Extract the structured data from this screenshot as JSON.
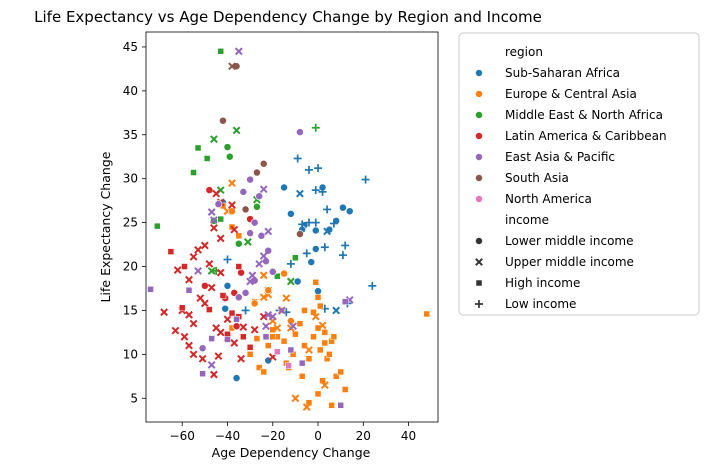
{
  "chart_data": {
    "type": "scatter",
    "title": "Life Expectancy vs Age Dependency Change by Region and Income",
    "xlabel": "Age Dependency Change",
    "ylabel": "Life Expectancy Change",
    "xlim": [
      -76,
      53
    ],
    "ylim": [
      2.3,
      46.7
    ],
    "xticks": [
      -60,
      -40,
      -20,
      0,
      20,
      40
    ],
    "yticks": [
      5,
      10,
      15,
      20,
      25,
      30,
      35,
      40,
      45
    ],
    "grid": false,
    "legend_position": "outside-right",
    "legend": {
      "hue_title": "region",
      "style_title": "income",
      "regions": [
        {
          "name": "Sub-Saharan Africa",
          "color": "#1f77b4"
        },
        {
          "name": "Europe & Central Asia",
          "color": "#ff7f0e"
        },
        {
          "name": "Middle East & North Africa",
          "color": "#2ca02c"
        },
        {
          "name": "Latin America & Caribbean",
          "color": "#d62728"
        },
        {
          "name": "East Asia & Pacific",
          "color": "#9467bd"
        },
        {
          "name": "South Asia",
          "color": "#8c564b"
        },
        {
          "name": "North America",
          "color": "#e377c2"
        }
      ],
      "incomes": [
        {
          "name": "Lower middle income",
          "marker": "circle"
        },
        {
          "name": "Upper middle income",
          "marker": "x"
        },
        {
          "name": "High income",
          "marker": "square"
        },
        {
          "name": "Low income",
          "marker": "plus"
        }
      ]
    },
    "series": [
      {
        "region": "Sub-Saharan Africa",
        "income": "Lower middle income",
        "points": [
          [
            -42,
            27.3
          ],
          [
            -40,
            17.8
          ],
          [
            -41,
            15.2
          ],
          [
            -36,
            7.3
          ],
          [
            -22,
            9.3
          ],
          [
            -15,
            29.0
          ],
          [
            -12,
            26.0
          ],
          [
            -9,
            18.3
          ],
          [
            -6,
            24.7
          ],
          [
            -7,
            24.2
          ],
          [
            -1,
            24.1
          ],
          [
            2,
            29.0
          ],
          [
            5,
            24.2
          ],
          [
            8,
            25.2
          ],
          [
            11,
            26.7
          ],
          [
            14,
            26.3
          ],
          [
            -1,
            22.0
          ],
          [
            -10,
            21.0
          ],
          [
            -3,
            20.5
          ],
          [
            0,
            17.2
          ]
        ]
      },
      {
        "region": "Sub-Saharan Africa",
        "income": "Low income",
        "points": [
          [
            -9,
            32.3
          ],
          [
            -4,
            31.0
          ],
          [
            0,
            31.2
          ],
          [
            -1,
            28.7
          ],
          [
            2,
            28.5
          ],
          [
            -4,
            25.0
          ],
          [
            4,
            26.5
          ],
          [
            -7,
            24.8
          ],
          [
            -1,
            25.0
          ],
          [
            3,
            22.2
          ],
          [
            7,
            24.9
          ],
          [
            12,
            22.4
          ],
          [
            21,
            29.9
          ],
          [
            24,
            17.8
          ],
          [
            -5,
            21.5
          ],
          [
            -12,
            20.3
          ],
          [
            -17,
            15.0
          ],
          [
            -14,
            14.8
          ],
          [
            -32,
            15.0
          ],
          [
            -40,
            20.8
          ],
          [
            11,
            21.3
          ],
          [
            13,
            15.8
          ],
          [
            3,
            15.2
          ]
        ]
      },
      {
        "region": "Sub-Saharan Africa",
        "income": "Upper middle income",
        "points": [
          [
            -8,
            28.3
          ],
          [
            4,
            24.0
          ],
          [
            8,
            15.0
          ]
        ]
      },
      {
        "region": "Europe & Central Asia",
        "income": "High income",
        "points": [
          [
            -38,
            24.5
          ],
          [
            -42,
            26.9
          ],
          [
            -35,
            23.5
          ],
          [
            -28,
            16.0
          ],
          [
            -27,
            11.8
          ],
          [
            -38,
            13.0
          ],
          [
            -26,
            8.5
          ],
          [
            -20,
            12.8
          ],
          [
            -18,
            12.0
          ],
          [
            -14,
            9.0
          ],
          [
            -11,
            10.0
          ],
          [
            -13,
            8.5
          ],
          [
            -8,
            13.5
          ],
          [
            -6,
            11.0
          ],
          [
            -4,
            9.5
          ],
          [
            -2,
            12.0
          ],
          [
            0,
            13.0
          ],
          [
            1,
            10.5
          ],
          [
            3,
            12.5
          ],
          [
            4,
            9.5
          ],
          [
            6,
            11.5
          ],
          [
            8,
            7.5
          ],
          [
            10,
            8.0
          ],
          [
            12,
            6.0
          ],
          [
            2,
            7.0
          ],
          [
            0,
            5.5
          ],
          [
            -4,
            4.5
          ],
          [
            -6,
            15.0
          ],
          [
            -2,
            14.8
          ],
          [
            0,
            16.5
          ],
          [
            -1,
            18.2
          ],
          [
            1,
            15.5
          ],
          [
            3,
            11.3
          ],
          [
            5,
            10.0
          ],
          [
            7,
            12.0
          ],
          [
            -7,
            7.5
          ],
          [
            -15,
            11.5
          ],
          [
            -10,
            12.3
          ],
          [
            -20,
            12.0
          ],
          [
            6,
            4.2
          ],
          [
            48,
            14.6
          ],
          [
            -30,
            10.0
          ],
          [
            -24,
            8.0
          ],
          [
            -22,
            11.0
          ],
          [
            -16,
            15.0
          ]
        ]
      },
      {
        "region": "Europe & Central Asia",
        "income": "Upper middle income",
        "points": [
          [
            -38,
            29.5
          ],
          [
            -40,
            26.3
          ],
          [
            -22,
            16.8
          ],
          [
            -24,
            16.5
          ],
          [
            -20,
            13.8
          ],
          [
            -18,
            13.0
          ],
          [
            -14,
            16.4
          ],
          [
            -12,
            13.0
          ],
          [
            -10,
            5.0
          ],
          [
            -5,
            4.0
          ],
          [
            -4,
            10.5
          ],
          [
            2,
            13.3
          ],
          [
            -1,
            14.3
          ],
          [
            -24,
            19.0
          ],
          [
            -22,
            17.3
          ],
          [
            3,
            6.5
          ]
        ]
      },
      {
        "region": "Europe & Central Asia",
        "income": "Lower middle income",
        "points": [
          [
            -38,
            26.3
          ],
          [
            -22,
            17.3
          ],
          [
            -28,
            15.8
          ],
          [
            -15,
            19.2
          ],
          [
            -12,
            13.8
          ]
        ]
      },
      {
        "region": "Middle East & North Africa",
        "income": "High income",
        "points": [
          [
            -43,
            44.5
          ],
          [
            -71,
            24.6
          ],
          [
            -53,
            33.5
          ],
          [
            -49,
            32.3
          ],
          [
            -55,
            30.7
          ],
          [
            -43,
            25.4
          ],
          [
            -18,
            18.9
          ],
          [
            -10,
            21.0
          ]
        ]
      },
      {
        "region": "Middle East & North Africa",
        "income": "Upper middle income",
        "points": [
          [
            -46,
            34.5
          ],
          [
            -36,
            35.5
          ],
          [
            -43,
            28.7
          ],
          [
            -47,
            19.5
          ],
          [
            -31,
            22.8
          ],
          [
            -12,
            18.3
          ],
          [
            -27,
            27.6
          ]
        ]
      },
      {
        "region": "Middle East & North Africa",
        "income": "Lower middle income",
        "points": [
          [
            -40,
            33.6
          ],
          [
            -39,
            32.5
          ],
          [
            -46,
            25.2
          ],
          [
            -27,
            26.8
          ],
          [
            -35,
            22.6
          ]
        ]
      },
      {
        "region": "Middle East & North Africa",
        "income": "Low income",
        "points": [
          [
            -1,
            35.8
          ],
          [
            -45,
            19.5
          ]
        ]
      },
      {
        "region": "Latin America & Caribbean",
        "income": "Lower middle income",
        "points": [
          [
            -48,
            28.7
          ],
          [
            -30,
            25.4
          ],
          [
            -34,
            19.3
          ],
          [
            -37,
            17.0
          ],
          [
            -50,
            17.8
          ],
          [
            -41,
            16.4
          ],
          [
            -36,
            13.2
          ],
          [
            -40,
            12.0
          ]
        ]
      },
      {
        "region": "Latin America & Caribbean",
        "income": "Upper middle income",
        "points": [
          [
            -45,
            28.3
          ],
          [
            -43,
            27.3
          ],
          [
            -38,
            27.0
          ],
          [
            -46,
            24.4
          ],
          [
            -37,
            24.2
          ],
          [
            -43,
            23.2
          ],
          [
            -50,
            22.4
          ],
          [
            -53,
            21.9
          ],
          [
            -55,
            21.1
          ],
          [
            -48,
            20.3
          ],
          [
            -43,
            19.3
          ],
          [
            -62,
            19.6
          ],
          [
            -57,
            18.5
          ],
          [
            -47,
            17.6
          ],
          [
            -52,
            16.4
          ],
          [
            -50,
            15.8
          ],
          [
            -60,
            15.0
          ],
          [
            -57,
            14.5
          ],
          [
            -55,
            13.5
          ],
          [
            -63,
            12.7
          ],
          [
            -59,
            12.0
          ],
          [
            -57,
            11.0
          ],
          [
            -55,
            10.0
          ],
          [
            -51,
            9.5
          ],
          [
            -46,
            7.7
          ],
          [
            -44,
            9.8
          ],
          [
            -43,
            12.5
          ],
          [
            -40,
            11.9
          ],
          [
            -37,
            11.3
          ],
          [
            -34,
            9.5
          ],
          [
            -33,
            13.1
          ],
          [
            -28,
            12.8
          ],
          [
            -24,
            14.3
          ],
          [
            -20,
            9.7
          ],
          [
            -40,
            14.0
          ],
          [
            -68,
            14.8
          ],
          [
            -45,
            13.0
          ]
        ]
      },
      {
        "region": "Latin America & Caribbean",
        "income": "High income",
        "points": [
          [
            -65,
            21.7
          ],
          [
            -59,
            20.0
          ],
          [
            -60,
            15.3
          ],
          [
            -48,
            15.1
          ],
          [
            -42,
            16.7
          ],
          [
            -40,
            12.3
          ],
          [
            -38,
            14.7
          ],
          [
            -35,
            14.3
          ],
          [
            -33,
            12.0
          ],
          [
            -30,
            10.8
          ],
          [
            -35,
            20.0
          ]
        ]
      },
      {
        "region": "East Asia & Pacific",
        "income": "Lower middle income",
        "points": [
          [
            -8,
            35.3
          ],
          [
            -30,
            29.9
          ],
          [
            -33,
            28.5
          ],
          [
            -26,
            28.0
          ],
          [
            -44,
            27.1
          ],
          [
            -28,
            25.0
          ],
          [
            -30,
            23.8
          ],
          [
            -25,
            23.5
          ],
          [
            -22,
            21.8
          ],
          [
            -23,
            20.6
          ],
          [
            -28,
            18.4
          ],
          [
            -32,
            17.0
          ],
          [
            -35,
            16.5
          ],
          [
            -51,
            10.7
          ],
          [
            -20,
            19.4
          ]
        ]
      },
      {
        "region": "East Asia & Pacific",
        "income": "Upper middle income",
        "points": [
          [
            -35,
            44.5
          ],
          [
            -24,
            28.8
          ],
          [
            -47,
            26.2
          ],
          [
            -46,
            25.3
          ],
          [
            -22,
            24.0
          ],
          [
            -24,
            21.2
          ],
          [
            -26,
            20.3
          ],
          [
            -29,
            19.0
          ],
          [
            -30,
            18.3
          ],
          [
            -47,
            8.8
          ],
          [
            -20,
            14.3
          ],
          [
            -22,
            14.5
          ],
          [
            -11,
            13.2
          ],
          [
            -16,
            15.0
          ],
          [
            -23,
            13.2
          ],
          [
            14,
            16.2
          ],
          [
            -53,
            19.5
          ]
        ]
      },
      {
        "region": "East Asia & Pacific",
        "income": "High income",
        "points": [
          [
            -74,
            17.4
          ],
          [
            -57,
            17.3
          ],
          [
            -47,
            11.8
          ],
          [
            -51,
            7.8
          ],
          [
            -40,
            11.7
          ],
          [
            -36,
            14.0
          ],
          [
            -23,
            12.0
          ],
          [
            -12,
            10.5
          ],
          [
            -7,
            9.0
          ],
          [
            12,
            16.0
          ],
          [
            10,
            4.2
          ]
        ]
      },
      {
        "region": "South Asia",
        "income": "Lower middle income",
        "points": [
          [
            -42,
            36.6
          ],
          [
            -36,
            42.8
          ],
          [
            -27,
            30.7
          ],
          [
            -24,
            31.7
          ],
          [
            -32,
            26.5
          ],
          [
            -8,
            23.7
          ]
        ]
      },
      {
        "region": "South Asia",
        "income": "Upper middle income",
        "points": [
          [
            -38,
            42.8
          ]
        ]
      },
      {
        "region": "North America",
        "income": "High income",
        "points": [
          [
            -18,
            10.3
          ],
          [
            -13,
            8.7
          ]
        ]
      }
    ]
  }
}
